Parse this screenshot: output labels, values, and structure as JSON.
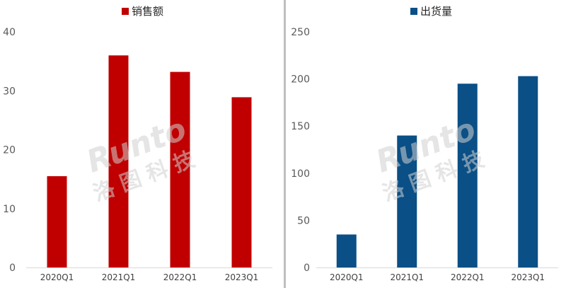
{
  "chart_data": [
    {
      "type": "bar",
      "categories": [
        "2020Q1",
        "2021Q1",
        "2022Q1",
        "2023Q1"
      ],
      "series": [
        {
          "name": "销售额",
          "values": [
            15.5,
            36,
            33.2,
            28.9
          ],
          "color": "#c00000"
        }
      ],
      "ylim": [
        0,
        40
      ],
      "yticks": [
        0,
        10,
        20,
        30,
        40
      ],
      "grid": false,
      "legend": "top-center"
    },
    {
      "type": "bar",
      "categories": [
        "2020Q1",
        "2021Q1",
        "2022Q1",
        "2023Q1"
      ],
      "series": [
        {
          "name": "出货量",
          "values": [
            35,
            140,
            195,
            203
          ],
          "color": "#0a4f86"
        }
      ],
      "ylim": [
        0,
        250
      ],
      "yticks": [
        0,
        50,
        100,
        150,
        200,
        250
      ],
      "grid": false,
      "legend": "top-center"
    }
  ],
  "watermark": {
    "brand": "Runto",
    "chinese": "洛图科技"
  }
}
